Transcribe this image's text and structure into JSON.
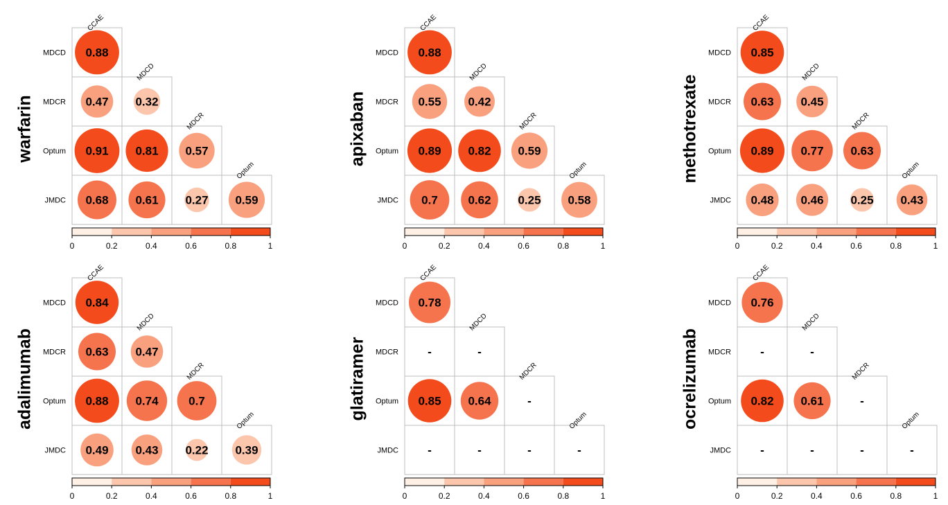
{
  "chart_data": {
    "type": "heatmap",
    "databases": [
      "CCAE",
      "MDCD",
      "MDCR",
      "Optum",
      "JMDC"
    ],
    "row_labels": [
      "MDCD",
      "MDCR",
      "Optum",
      "JMDC"
    ],
    "col_labels": [
      "CCAE",
      "MDCD",
      "MDCR",
      "Optum"
    ],
    "scale": {
      "range": [
        0,
        1
      ],
      "ticks": [
        "0",
        "0.2",
        "0.4",
        "0.6",
        "0.8",
        "1"
      ],
      "colors": [
        "#fff0e6",
        "#fcc6ad",
        "#f9a07f",
        "#f6744d",
        "#f34b1c"
      ]
    },
    "missing_symbol": "-",
    "panels": [
      {
        "title": "warfarin",
        "values": [
          [
            0.88
          ],
          [
            0.47,
            0.32
          ],
          [
            0.91,
            0.81,
            0.57
          ],
          [
            0.68,
            0.61,
            0.27,
            0.59
          ]
        ],
        "labels": [
          [
            "0.88"
          ],
          [
            "0.47",
            "0.32"
          ],
          [
            "0.91",
            "0.81",
            "0.57"
          ],
          [
            "0.68",
            "0.61",
            "0.27",
            "0.59"
          ]
        ]
      },
      {
        "title": "apixaban",
        "values": [
          [
            0.88
          ],
          [
            0.55,
            0.42
          ],
          [
            0.89,
            0.82,
            0.59
          ],
          [
            0.7,
            0.62,
            0.25,
            0.58
          ]
        ],
        "labels": [
          [
            "0.88"
          ],
          [
            "0.55",
            "0.42"
          ],
          [
            "0.89",
            "0.82",
            "0.59"
          ],
          [
            "0.7",
            "0.62",
            "0.25",
            "0.58"
          ]
        ]
      },
      {
        "title": "methotrexate",
        "values": [
          [
            0.85
          ],
          [
            0.63,
            0.45
          ],
          [
            0.89,
            0.77,
            0.63
          ],
          [
            0.48,
            0.46,
            0.25,
            0.43
          ]
        ],
        "labels": [
          [
            "0.85"
          ],
          [
            "0.63",
            "0.45"
          ],
          [
            "0.89",
            "0.77",
            "0.63"
          ],
          [
            "0.48",
            "0.46",
            "0.25",
            "0.43"
          ]
        ]
      },
      {
        "title": "adalimumab",
        "values": [
          [
            0.84
          ],
          [
            0.63,
            0.47
          ],
          [
            0.88,
            0.74,
            0.7
          ],
          [
            0.49,
            0.43,
            0.22,
            0.39
          ]
        ],
        "labels": [
          [
            "0.84"
          ],
          [
            "0.63",
            "0.47"
          ],
          [
            "0.88",
            "0.74",
            "0.7"
          ],
          [
            "0.49",
            "0.43",
            "0.22",
            "0.39"
          ]
        ]
      },
      {
        "title": "glatiramer",
        "values": [
          [
            0.78
          ],
          [
            null,
            null
          ],
          [
            0.85,
            0.64,
            null
          ],
          [
            null,
            null,
            null,
            null
          ]
        ],
        "labels": [
          [
            "0.78"
          ],
          [
            "-",
            "-"
          ],
          [
            "0.85",
            "0.64",
            "-"
          ],
          [
            "-",
            "-",
            "-",
            "-"
          ]
        ]
      },
      {
        "title": "ocrelizumab",
        "values": [
          [
            0.76
          ],
          [
            null,
            null
          ],
          [
            0.82,
            0.61,
            null
          ],
          [
            null,
            null,
            null,
            null
          ]
        ],
        "labels": [
          [
            "0.76"
          ],
          [
            "-",
            "-"
          ],
          [
            "0.82",
            "0.61",
            "-"
          ],
          [
            "-",
            "-",
            "-",
            "-"
          ]
        ]
      }
    ]
  }
}
